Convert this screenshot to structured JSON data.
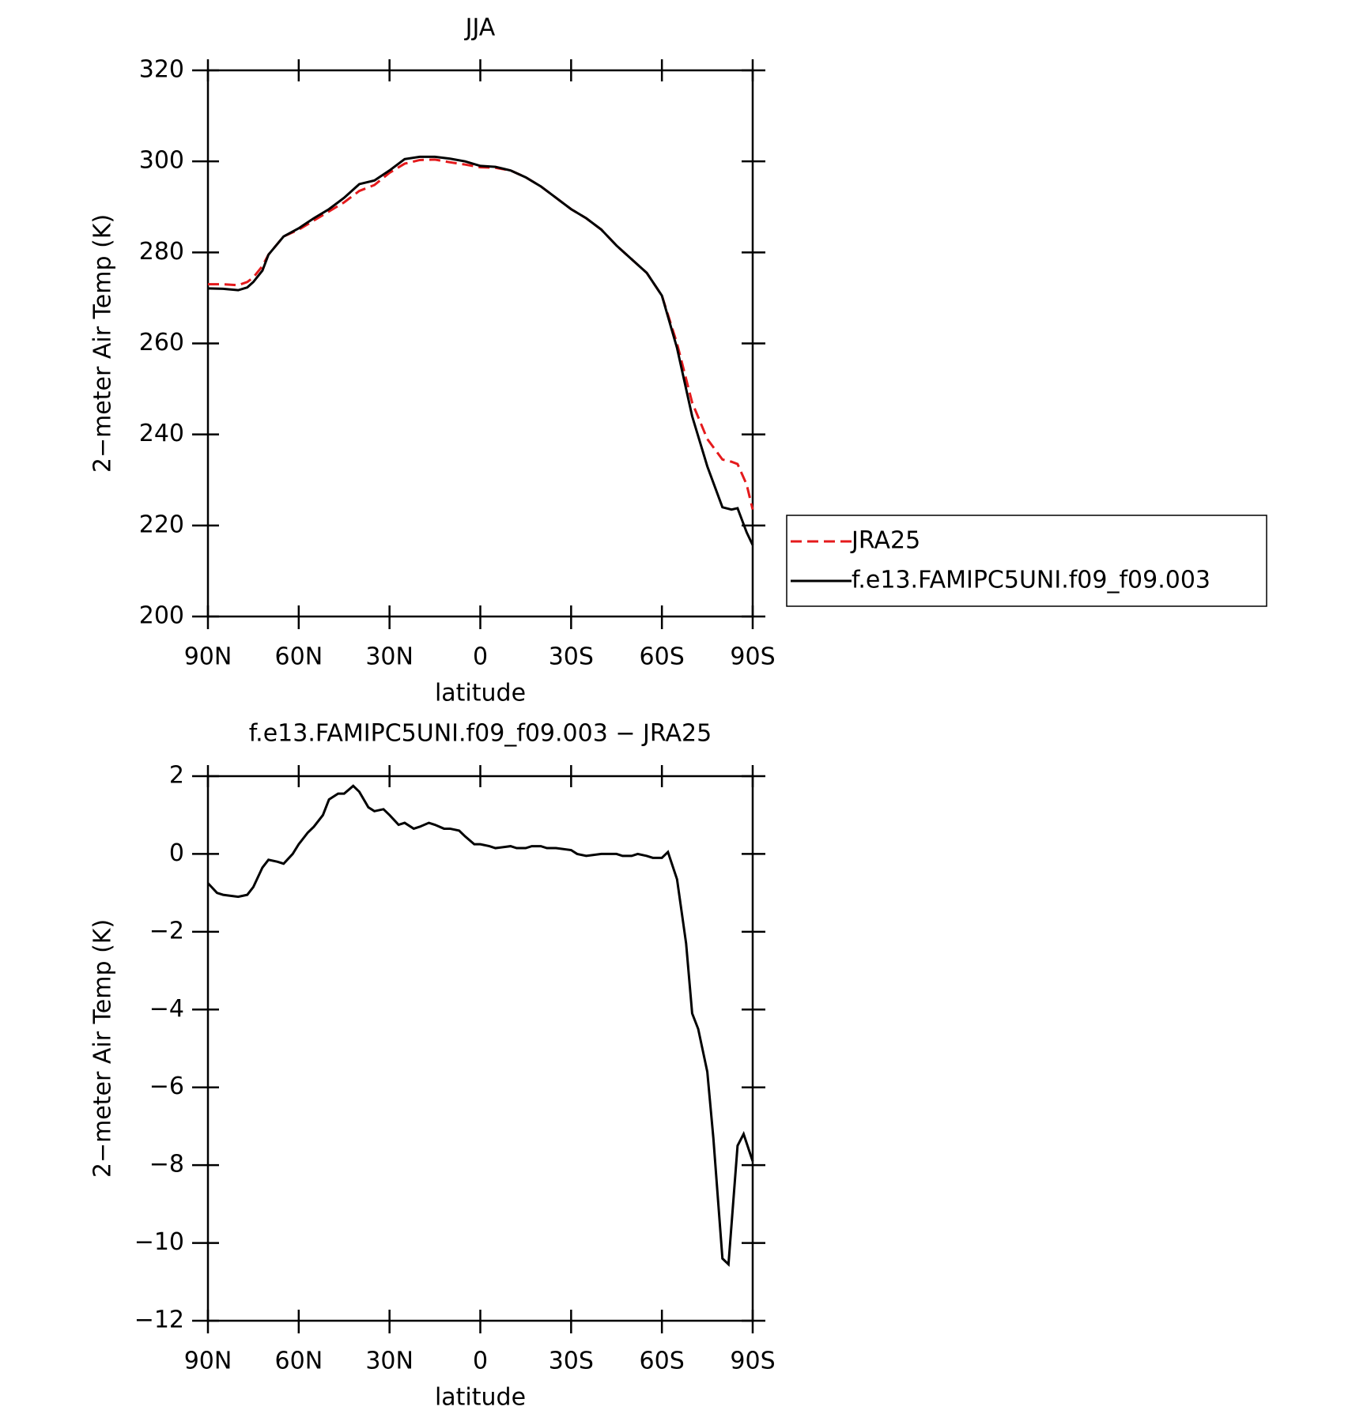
{
  "chart_data": [
    {
      "type": "line",
      "title": "JJA",
      "xlabel": "latitude",
      "ylabel": "2−meter Air Temp (K)",
      "xlim": [
        90,
        -90
      ],
      "xticks": [
        {
          "value": 90,
          "label": "90N"
        },
        {
          "value": 60,
          "label": "60N"
        },
        {
          "value": 30,
          "label": "30N"
        },
        0,
        {
          "value": -30,
          "label": "30S"
        },
        {
          "value": -60,
          "label": "60S"
        },
        {
          "value": -90,
          "label": "90S"
        }
      ],
      "ylim": [
        200,
        320
      ],
      "yticks": [
        200,
        220,
        240,
        260,
        280,
        300,
        320
      ],
      "legend": "right",
      "x": [
        90,
        85,
        80,
        77,
        75,
        72,
        70,
        65,
        60,
        55,
        50,
        45,
        40,
        35,
        30,
        25,
        20,
        15,
        10,
        5,
        0,
        -5,
        -10,
        -15,
        -20,
        -25,
        -30,
        -35,
        -40,
        -45,
        -50,
        -55,
        -60,
        -65,
        -70,
        -75,
        -80,
        -83,
        -85,
        -88,
        -90
      ],
      "series": [
        {
          "name": "JRA25",
          "color": "#e41a1c",
          "dash": true,
          "values": [
            273,
            273,
            272.8,
            273.5,
            274.5,
            277,
            279.5,
            283.5,
            285,
            287,
            289,
            291,
            293.5,
            294.8,
            297.5,
            299.5,
            300.3,
            300.4,
            299.8,
            299.3,
            298.7,
            298.6,
            298,
            296.5,
            294.5,
            292,
            289.5,
            287.5,
            285,
            281.5,
            278.5,
            275.5,
            270.5,
            260,
            247,
            239,
            234.5,
            234,
            233.5,
            229,
            223.5
          ]
        },
        {
          "name": "f.e13.FAMIPC5UNI.f09_f09.003",
          "color": "#000000",
          "dash": false,
          "values": [
            272.1,
            272,
            271.7,
            272.3,
            273.5,
            276,
            279.5,
            283.5,
            285.3,
            287.5,
            289.5,
            292,
            295,
            295.8,
            298,
            300.5,
            301,
            301,
            300.6,
            300,
            299,
            298.8,
            298,
            296.5,
            294.5,
            292,
            289.5,
            287.5,
            285,
            281.5,
            278.5,
            275.5,
            270.5,
            259,
            244,
            233,
            224,
            223.5,
            223.8,
            218.5,
            215.7
          ]
        }
      ]
    },
    {
      "type": "line",
      "title": "f.e13.FAMIPC5UNI.f09_f09.003 − JRA25",
      "xlabel": "latitude",
      "ylabel": "2−meter Air Temp (K)",
      "xlim": [
        90,
        -90
      ],
      "xticks": [
        {
          "value": 90,
          "label": "90N"
        },
        {
          "value": 60,
          "label": "60N"
        },
        {
          "value": 30,
          "label": "30N"
        },
        0,
        {
          "value": -30,
          "label": "30S"
        },
        {
          "value": -60,
          "label": "60S"
        },
        {
          "value": -90,
          "label": "90S"
        }
      ],
      "ylim": [
        -12,
        2
      ],
      "yticks": [
        {
          "value": -12,
          "label": "−12"
        },
        {
          "value": -10,
          "label": "−10"
        },
        {
          "value": -8,
          "label": "−8"
        },
        {
          "value": -6,
          "label": "−6"
        },
        {
          "value": -4,
          "label": "−4"
        },
        {
          "value": -2,
          "label": "−2"
        },
        0,
        2
      ],
      "x": [
        90,
        87,
        85,
        80,
        77,
        75,
        72,
        70,
        67,
        65,
        62,
        60,
        57,
        55,
        52,
        50,
        47,
        45,
        42,
        40,
        37,
        35,
        32,
        30,
        27,
        25,
        22,
        20,
        17,
        15,
        12,
        10,
        7,
        5,
        2,
        0,
        -3,
        -5,
        -10,
        -12,
        -15,
        -17,
        -20,
        -22,
        -25,
        -30,
        -32,
        -35,
        -40,
        -45,
        -47,
        -50,
        -52,
        -55,
        -57,
        -60,
        -62,
        -65,
        -68,
        -70,
        -72,
        -75,
        -77,
        -80,
        -82,
        -85,
        -87,
        -90
      ],
      "series": [
        {
          "color": "#000000",
          "values": [
            -0.75,
            -1.0,
            -1.05,
            -1.1,
            -1.05,
            -0.85,
            -0.35,
            -0.15,
            -0.2,
            -0.25,
            0.0,
            0.25,
            0.55,
            0.7,
            1.0,
            1.4,
            1.55,
            1.55,
            1.75,
            1.6,
            1.2,
            1.1,
            1.15,
            1.0,
            0.75,
            0.8,
            0.65,
            0.7,
            0.8,
            0.75,
            0.65,
            0.65,
            0.6,
            0.45,
            0.25,
            0.25,
            0.2,
            0.15,
            0.2,
            0.15,
            0.15,
            0.2,
            0.2,
            0.15,
            0.15,
            0.1,
            0.0,
            -0.05,
            0.0,
            0.0,
            -0.05,
            -0.05,
            0.0,
            -0.05,
            -0.1,
            -0.1,
            0.05,
            -0.65,
            -2.3,
            -4.1,
            -4.5,
            -5.6,
            -7.3,
            -10.4,
            -10.55,
            -7.5,
            -7.2,
            -7.9
          ]
        }
      ]
    }
  ]
}
